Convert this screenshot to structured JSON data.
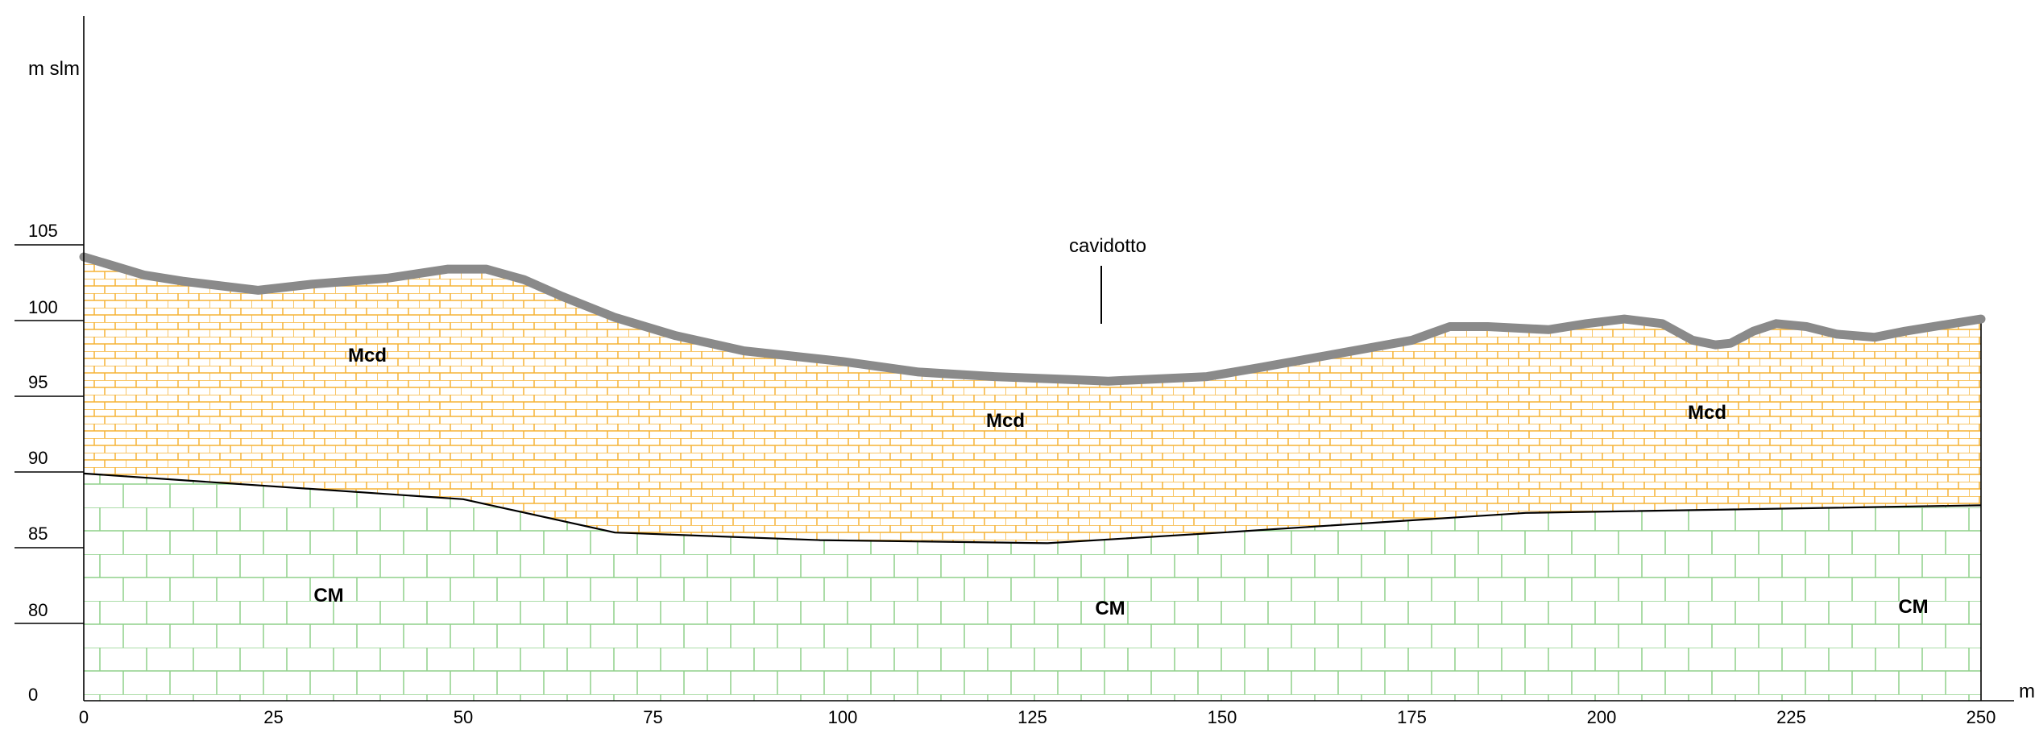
{
  "axes": {
    "y_unit": "m slm",
    "x_unit": "m",
    "y_ticks": [
      "105",
      "100",
      "95",
      "90",
      "85",
      "80",
      "0"
    ],
    "x_ticks": [
      "0",
      "25",
      "50",
      "75",
      "100",
      "125",
      "150",
      "175",
      "200",
      "225",
      "250"
    ],
    "x_range": [
      0,
      250
    ]
  },
  "layers": {
    "upper": {
      "name": "Mcd",
      "color": "#f5b335",
      "labels": [
        "Mcd",
        "Mcd",
        "Mcd"
      ]
    },
    "lower": {
      "name": "CM",
      "color": "#8fd18a",
      "labels": [
        "CM",
        "CM",
        "CM"
      ]
    }
  },
  "ground_surface": {
    "color": "#8a8a8a",
    "profile": [
      [
        0,
        104.2
      ],
      [
        4,
        103.6
      ],
      [
        8,
        103.0
      ],
      [
        13,
        102.6
      ],
      [
        18,
        102.3
      ],
      [
        23,
        102.0
      ],
      [
        30,
        102.4
      ],
      [
        40,
        102.8
      ],
      [
        48,
        103.4
      ],
      [
        53,
        103.4
      ],
      [
        58,
        102.7
      ],
      [
        63,
        101.6
      ],
      [
        70,
        100.2
      ],
      [
        78,
        99.0
      ],
      [
        87,
        98.0
      ],
      [
        100,
        97.3
      ],
      [
        110,
        96.6
      ],
      [
        120,
        96.3
      ],
      [
        130,
        96.1
      ],
      [
        135,
        96.0
      ],
      [
        148,
        96.3
      ],
      [
        155,
        96.9
      ],
      [
        165,
        97.8
      ],
      [
        175,
        98.7
      ],
      [
        180,
        99.6
      ],
      [
        185,
        99.6
      ],
      [
        193,
        99.4
      ],
      [
        198,
        99.8
      ],
      [
        203,
        100.1
      ],
      [
        208,
        99.8
      ],
      [
        212,
        98.7
      ],
      [
        215,
        98.4
      ],
      [
        217,
        98.5
      ],
      [
        220,
        99.3
      ],
      [
        223,
        99.8
      ],
      [
        227,
        99.6
      ],
      [
        231,
        99.1
      ],
      [
        236,
        98.9
      ],
      [
        240,
        99.3
      ],
      [
        245,
        99.7
      ],
      [
        250,
        100.1
      ]
    ]
  },
  "contact": {
    "profile": [
      [
        0,
        89.9
      ],
      [
        50,
        88.2
      ],
      [
        70,
        86.0
      ],
      [
        97,
        85.5
      ],
      [
        127,
        85.3
      ],
      [
        150,
        86.0
      ],
      [
        190,
        87.3
      ],
      [
        250,
        87.8
      ]
    ]
  },
  "callout": {
    "label": "cavidotto",
    "at_x": 134
  }
}
